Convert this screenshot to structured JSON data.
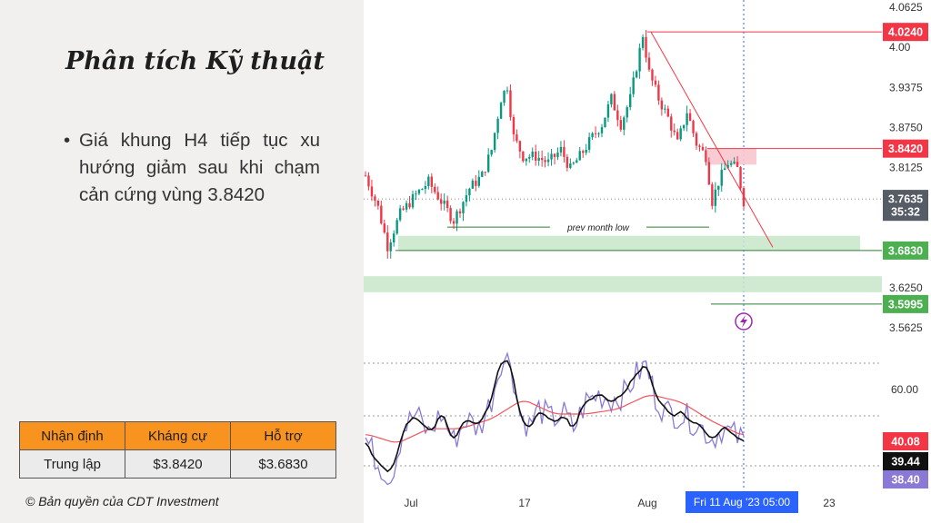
{
  "slide": {
    "title": "Phân tích Kỹ thuật",
    "bullet": "Giá khung H4 tiếp tục xu hướng giảm sau khi chạm cản cứng vùng 3.8420",
    "copyright": "© Bản quyền của CDT Investment"
  },
  "summary_table": {
    "headers": [
      "Nhận định",
      "Kháng cự",
      "Hỗ trợ"
    ],
    "row": [
      "Trung lập",
      "$3.8420",
      "$3.6830"
    ]
  },
  "colors": {
    "resistance": "#f23645",
    "support": "#4caf50",
    "candle_up": "#089981",
    "candle_down": "#f23645",
    "rsi": "#8b79d6",
    "rsi_black": "#111111",
    "rsi_ma": "#f0555e",
    "time_badge": "#2962ff",
    "header_orange": "#f7931e"
  },
  "chart_data": [
    {
      "type": "candlestick",
      "timeframe": "H4",
      "y_ticks": [
        "4.0625",
        "4.00",
        "3.9375",
        "3.8750",
        "3.8125",
        "3.6250",
        "3.5625"
      ],
      "ylim": [
        3.52,
        4.07
      ],
      "x_ticks": [
        "Jul",
        "17",
        "Aug",
        "23"
      ],
      "time_badge": "Fri 11 Aug '23   05:00",
      "price_labels": [
        {
          "text": "4.0240",
          "value": 4.024,
          "kind": "resistance"
        },
        {
          "text": "3.8420",
          "value": 3.842,
          "kind": "resistance"
        },
        {
          "text": "3.7635",
          "value": 3.7635,
          "kind": "current"
        },
        {
          "text": "35:32",
          "value": 3.7435,
          "kind": "countdown"
        },
        {
          "text": "3.6830",
          "value": 3.683,
          "kind": "support"
        },
        {
          "text": "3.5995",
          "value": 3.5995,
          "kind": "support"
        }
      ],
      "annotation": "prev month low",
      "key_points": [
        {
          "t": 0,
          "p": 3.8
        },
        {
          "t": 8,
          "p": 3.75
        },
        {
          "t": 14,
          "p": 3.69
        },
        {
          "t": 22,
          "p": 3.74
        },
        {
          "t": 32,
          "p": 3.77
        },
        {
          "t": 40,
          "p": 3.79
        },
        {
          "t": 48,
          "p": 3.76
        },
        {
          "t": 56,
          "p": 3.73
        },
        {
          "t": 66,
          "p": 3.78
        },
        {
          "t": 74,
          "p": 3.8
        },
        {
          "t": 80,
          "p": 3.84
        },
        {
          "t": 86,
          "p": 3.92
        },
        {
          "t": 90,
          "p": 3.94
        },
        {
          "t": 94,
          "p": 3.86
        },
        {
          "t": 100,
          "p": 3.83
        },
        {
          "t": 108,
          "p": 3.83
        },
        {
          "t": 116,
          "p": 3.82
        },
        {
          "t": 124,
          "p": 3.84
        },
        {
          "t": 130,
          "p": 3.81
        },
        {
          "t": 136,
          "p": 3.83
        },
        {
          "t": 144,
          "p": 3.86
        },
        {
          "t": 150,
          "p": 3.88
        },
        {
          "t": 156,
          "p": 3.92
        },
        {
          "t": 162,
          "p": 3.88
        },
        {
          "t": 168,
          "p": 3.92
        },
        {
          "t": 172,
          "p": 3.97
        },
        {
          "t": 176,
          "p": 4.02
        },
        {
          "t": 180,
          "p": 3.96
        },
        {
          "t": 186,
          "p": 3.92
        },
        {
          "t": 192,
          "p": 3.89
        },
        {
          "t": 198,
          "p": 3.85
        },
        {
          "t": 204,
          "p": 3.9
        },
        {
          "t": 210,
          "p": 3.85
        },
        {
          "t": 216,
          "p": 3.83
        },
        {
          "t": 220,
          "p": 3.76
        },
        {
          "t": 224,
          "p": 3.79
        },
        {
          "t": 230,
          "p": 3.82
        },
        {
          "t": 236,
          "p": 3.81
        },
        {
          "t": 240,
          "p": 3.76
        }
      ]
    },
    {
      "type": "line",
      "indicator": "RSI",
      "y_ticks": [
        "60.00"
      ],
      "ylim": [
        20,
        82
      ],
      "value_labels": [
        {
          "text": "40.08",
          "value": 40.08
        },
        {
          "text": "39.44",
          "value": 39.44
        },
        {
          "text": "38.40",
          "value": 38.4
        }
      ],
      "rsi_key": [
        {
          "t": 0,
          "v": 40
        },
        {
          "t": 8,
          "v": 30
        },
        {
          "t": 16,
          "v": 24
        },
        {
          "t": 24,
          "v": 44
        },
        {
          "t": 32,
          "v": 50
        },
        {
          "t": 40,
          "v": 42
        },
        {
          "t": 48,
          "v": 50
        },
        {
          "t": 56,
          "v": 39
        },
        {
          "t": 64,
          "v": 48
        },
        {
          "t": 72,
          "v": 44
        },
        {
          "t": 80,
          "v": 56
        },
        {
          "t": 86,
          "v": 72
        },
        {
          "t": 92,
          "v": 72
        },
        {
          "t": 98,
          "v": 50
        },
        {
          "t": 104,
          "v": 45
        },
        {
          "t": 110,
          "v": 52
        },
        {
          "t": 118,
          "v": 48
        },
        {
          "t": 126,
          "v": 50
        },
        {
          "t": 132,
          "v": 44
        },
        {
          "t": 140,
          "v": 55
        },
        {
          "t": 148,
          "v": 58
        },
        {
          "t": 156,
          "v": 56
        },
        {
          "t": 164,
          "v": 58
        },
        {
          "t": 172,
          "v": 66
        },
        {
          "t": 178,
          "v": 70
        },
        {
          "t": 184,
          "v": 57
        },
        {
          "t": 190,
          "v": 51
        },
        {
          "t": 198,
          "v": 50
        },
        {
          "t": 206,
          "v": 48
        },
        {
          "t": 214,
          "v": 44
        },
        {
          "t": 220,
          "v": 40
        },
        {
          "t": 226,
          "v": 44
        },
        {
          "t": 232,
          "v": 42
        },
        {
          "t": 240,
          "v": 39
        }
      ],
      "ma_key": [
        {
          "t": 0,
          "v": 42
        },
        {
          "t": 20,
          "v": 38
        },
        {
          "t": 40,
          "v": 44
        },
        {
          "t": 60,
          "v": 44
        },
        {
          "t": 80,
          "v": 48
        },
        {
          "t": 100,
          "v": 56
        },
        {
          "t": 120,
          "v": 50
        },
        {
          "t": 140,
          "v": 50
        },
        {
          "t": 160,
          "v": 52
        },
        {
          "t": 180,
          "v": 58
        },
        {
          "t": 200,
          "v": 55
        },
        {
          "t": 220,
          "v": 47
        },
        {
          "t": 240,
          "v": 41
        }
      ]
    }
  ]
}
